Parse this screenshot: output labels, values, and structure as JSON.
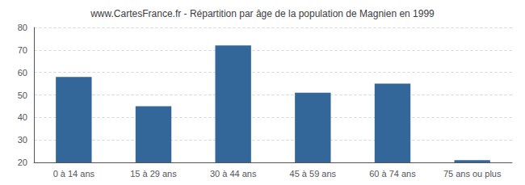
{
  "chart_data": {
    "type": "bar",
    "title": "www.CartesFrance.fr - Répartition par âge de la population de Magnien en 1999",
    "categories": [
      "0 à 14 ans",
      "15 à 29 ans",
      "30 à 44 ans",
      "45 à 59 ans",
      "60 à 74 ans",
      "75 ans ou plus"
    ],
    "values": [
      58,
      45,
      72,
      51,
      55,
      21
    ],
    "color": "#336699",
    "ylim": [
      20,
      80
    ],
    "yticks": [
      20,
      30,
      40,
      50,
      60,
      70,
      80
    ],
    "grid": true
  }
}
